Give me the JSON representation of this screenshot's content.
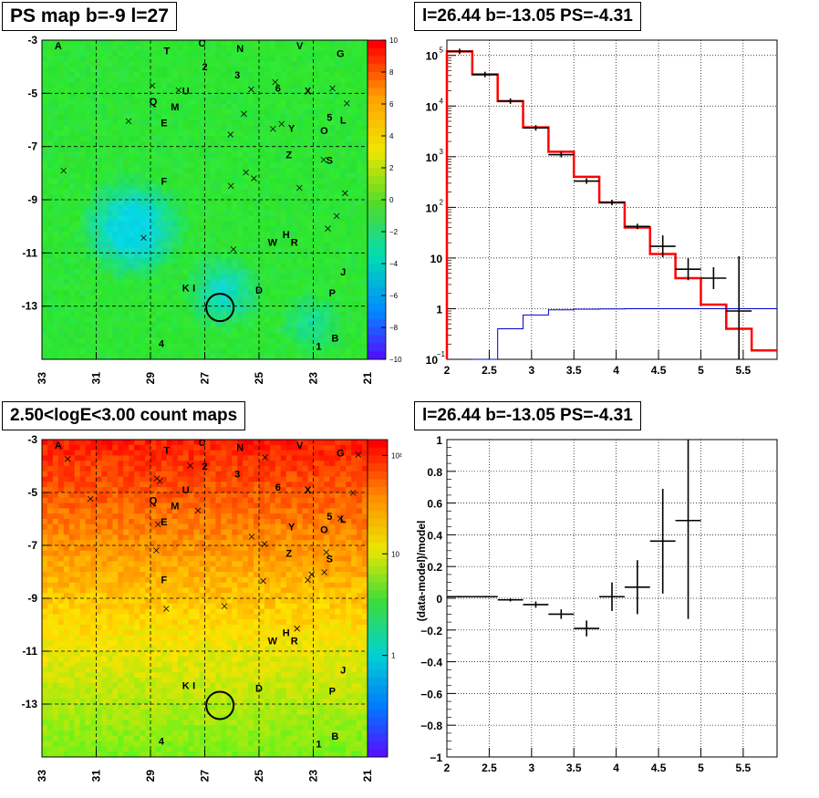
{
  "panels": {
    "tl_title": "PS map b=-9 l=27",
    "tr_title": "l=26.44 b=-13.05 PS=-4.31",
    "bl_title": "2.50<logE<3.00 count maps",
    "br_title": "l=26.44 b=-13.05 PS=-4.31"
  },
  "chart_data": [
    {
      "type": "heatmap",
      "title": "PS map b=-9 l=27",
      "x_ticks": [
        "33",
        "31",
        "29",
        "27",
        "25",
        "23",
        "21"
      ],
      "y_ticks": [
        "-3",
        "-5",
        "-7",
        "-9",
        "-11",
        "-13"
      ],
      "xlim": [
        33,
        21
      ],
      "ylim": [
        -15,
        -3
      ],
      "colorbar": {
        "min": -10,
        "max": 10,
        "ticks": [
          "10",
          "8",
          "6",
          "4",
          "2",
          "0",
          "−2",
          "−4",
          "−6",
          "−8",
          "−10"
        ]
      },
      "source_labels": [
        {
          "t": "A",
          "l": 32.4,
          "b": -3.2
        },
        {
          "t": "T",
          "l": 28.4,
          "b": -3.4
        },
        {
          "t": "C",
          "l": 27.1,
          "b": -3.1
        },
        {
          "t": "N",
          "l": 25.7,
          "b": -3.3
        },
        {
          "t": "V",
          "l": 23.5,
          "b": -3.2
        },
        {
          "t": "G",
          "l": 22.0,
          "b": -3.5
        },
        {
          "t": "2",
          "l": 27.0,
          "b": -4.0
        },
        {
          "t": "3",
          "l": 25.8,
          "b": -4.3
        },
        {
          "t": "U",
          "l": 27.7,
          "b": -4.9
        },
        {
          "t": "6",
          "l": 24.3,
          "b": -4.8
        },
        {
          "t": "X",
          "l": 23.2,
          "b": -4.9
        },
        {
          "t": "Q",
          "l": 28.9,
          "b": -5.3
        },
        {
          "t": "M",
          "l": 28.1,
          "b": -5.5
        },
        {
          "t": "5",
          "l": 22.4,
          "b": -5.9
        },
        {
          "t": "L",
          "l": 21.9,
          "b": -6.0
        },
        {
          "t": "E",
          "l": 28.5,
          "b": -6.1
        },
        {
          "t": "O",
          "l": 22.6,
          "b": -6.4
        },
        {
          "t": "Y",
          "l": 23.8,
          "b": -6.3
        },
        {
          "t": "Z",
          "l": 23.9,
          "b": -7.3
        },
        {
          "t": "S",
          "l": 22.4,
          "b": -7.5
        },
        {
          "t": "F",
          "l": 28.5,
          "b": -8.3
        },
        {
          "t": "H",
          "l": 24.0,
          "b": -10.3
        },
        {
          "t": "W",
          "l": 24.5,
          "b": -10.6
        },
        {
          "t": "R",
          "l": 23.7,
          "b": -10.6
        },
        {
          "t": "J",
          "l": 21.9,
          "b": -11.7
        },
        {
          "t": "K",
          "l": 27.7,
          "b": -12.3
        },
        {
          "t": "I",
          "l": 27.4,
          "b": -12.3
        },
        {
          "t": "D",
          "l": 25.0,
          "b": -12.4
        },
        {
          "t": "P",
          "l": 22.3,
          "b": -12.5
        },
        {
          "t": "B",
          "l": 22.2,
          "b": -14.2
        },
        {
          "t": "4",
          "l": 28.6,
          "b": -14.4
        },
        {
          "t": "1",
          "l": 22.8,
          "b": -14.5
        }
      ],
      "circle": {
        "l": 26.44,
        "b": -13.05
      }
    },
    {
      "type": "line",
      "title": "l=26.44 b=-13.05 PS=-4.31",
      "xlabel": "",
      "ylabel": "",
      "xlim": [
        2,
        5.9
      ],
      "ylim": [
        0.1,
        200000
      ],
      "y_scale": "log",
      "x_ticks": [
        "2",
        "2.5",
        "3",
        "3.5",
        "4",
        "4.5",
        "5",
        "5.5"
      ],
      "y_ticks": [
        "10^5",
        "10^4",
        "10^3",
        "10^2",
        "10",
        "1",
        "10^-1"
      ],
      "grid": true,
      "bin_edges": [
        2.0,
        2.3,
        2.6,
        2.9,
        3.2,
        3.5,
        3.8,
        4.1,
        4.4,
        4.7,
        5.0,
        5.3,
        5.6,
        5.9
      ],
      "series": [
        {
          "color": "#ff0000",
          "values": [
            120000,
            42000,
            12500,
            3800,
            1250,
            400,
            125,
            40,
            12,
            4,
            1.2,
            0.4,
            0.15
          ]
        },
        {
          "color": "#000000",
          "data": [
            {
              "x": 2.15,
              "y": 120000
            },
            {
              "x": 2.45,
              "y": 42000
            },
            {
              "x": 2.75,
              "y": 12500
            },
            {
              "x": 3.05,
              "y": 3700
            },
            {
              "x": 3.35,
              "y": 1100
            },
            {
              "x": 3.65,
              "y": 330
            },
            {
              "x": 3.95,
              "y": 125
            },
            {
              "x": 4.25,
              "y": 42
            },
            {
              "x": 4.55,
              "y": 17
            },
            {
              "x": 4.85,
              "y": 6
            },
            {
              "x": 5.15,
              "y": 4
            },
            {
              "x": 5.45,
              "y": 0.9
            }
          ]
        },
        {
          "color": "#0000cc",
          "values": [
            null,
            0.05,
            0.4,
            0.75,
            0.95,
            0.98,
            0.99,
            1.0,
            1.0,
            1.0,
            1.0,
            1.0,
            1.0
          ]
        }
      ]
    },
    {
      "type": "heatmap",
      "title": "2.50<logE<3.00 count maps",
      "x_ticks": [
        "33",
        "31",
        "29",
        "27",
        "25",
        "23",
        "21"
      ],
      "y_ticks": [
        "-3",
        "-5",
        "-7",
        "-9",
        "-11",
        "-13"
      ],
      "xlim": [
        33,
        21
      ],
      "ylim": [
        -15,
        -3
      ],
      "colorbar": {
        "scale": "log",
        "ticks": [
          "10^2",
          "10",
          "1"
        ]
      },
      "circle": {
        "l": 26.44,
        "b": -13.05
      }
    },
    {
      "type": "scatter",
      "title": "l=26.44 b=-13.05 PS=-4.31",
      "ylabel": "(data-model)/model",
      "xlim": [
        2,
        5.9
      ],
      "ylim": [
        -1,
        1
      ],
      "x_ticks": [
        "2",
        "2.5",
        "3",
        "3.5",
        "4",
        "4.5",
        "5",
        "5.5"
      ],
      "y_ticks": [
        "1",
        "0.8",
        "0.6",
        "0.4",
        "0.2",
        "0",
        "−0.2",
        "−0.4",
        "−0.6",
        "−0.8",
        "−1"
      ],
      "grid": true,
      "points": [
        {
          "x": 2.15,
          "y": 0.01,
          "err": 0.005,
          "xerr": 0.15
        },
        {
          "x": 2.45,
          "y": 0.01,
          "err": 0.005,
          "xerr": 0.15
        },
        {
          "x": 2.75,
          "y": -0.01,
          "err": 0.01,
          "xerr": 0.15
        },
        {
          "x": 3.05,
          "y": -0.04,
          "err": 0.02,
          "xerr": 0.15
        },
        {
          "x": 3.35,
          "y": -0.1,
          "err": 0.03,
          "xerr": 0.15
        },
        {
          "x": 3.65,
          "y": -0.19,
          "err": 0.05,
          "xerr": 0.15
        },
        {
          "x": 3.95,
          "y": 0.01,
          "err": 0.09,
          "xerr": 0.15
        },
        {
          "x": 4.25,
          "y": 0.07,
          "err": 0.17,
          "xerr": 0.15
        },
        {
          "x": 4.55,
          "y": 0.36,
          "err": 0.33,
          "xerr": 0.15
        },
        {
          "x": 4.85,
          "y": 0.49,
          "err": 0.62,
          "xerr": 0.15
        }
      ]
    }
  ]
}
